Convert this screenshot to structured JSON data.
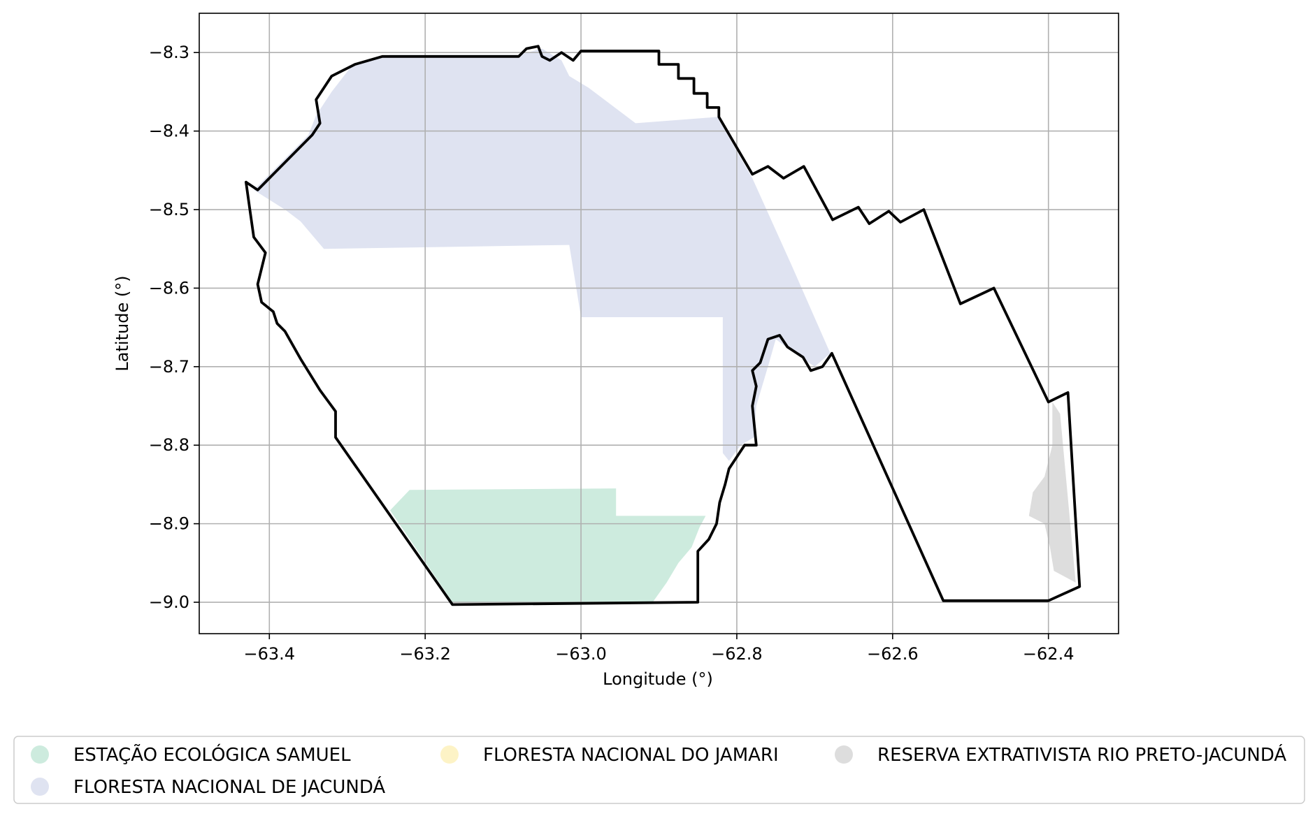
{
  "map": {
    "x_axis": {
      "label": "Longitude (°)",
      "range": [
        -63.49,
        -62.31
      ],
      "ticks": [
        {
          "value": -63.4,
          "label": "−63.4"
        },
        {
          "value": -63.2,
          "label": "−63.2"
        },
        {
          "value": -63.0,
          "label": "−63.0"
        },
        {
          "value": -62.8,
          "label": "−62.8"
        },
        {
          "value": -62.6,
          "label": "−62.6"
        },
        {
          "value": -62.4,
          "label": "−62.4"
        }
      ]
    },
    "y_axis": {
      "label": "Latitude (°)",
      "range": [
        -9.04,
        -8.25
      ],
      "ticks": [
        {
          "value": -8.3,
          "label": "−8.3"
        },
        {
          "value": -8.4,
          "label": "−8.4"
        },
        {
          "value": -8.5,
          "label": "−8.5"
        },
        {
          "value": -8.6,
          "label": "−8.6"
        },
        {
          "value": -8.7,
          "label": "−8.7"
        },
        {
          "value": -8.8,
          "label": "−8.8"
        },
        {
          "value": -8.9,
          "label": "−8.9"
        },
        {
          "value": -9.0,
          "label": "−9.0"
        }
      ]
    },
    "grid": true,
    "legend_position": "bottom",
    "boundary_color": "#000000",
    "areas": [
      {
        "name": "FLORESTA NACIONAL DE JACUNDÁ",
        "color": "#dfe3f1",
        "polygon": [
          [
            -63.42,
            -8.475
          ],
          [
            -63.385,
            -8.44
          ],
          [
            -63.35,
            -8.405
          ],
          [
            -63.34,
            -8.38
          ],
          [
            -63.32,
            -8.35
          ],
          [
            -63.295,
            -8.318
          ],
          [
            -63.245,
            -8.303
          ],
          [
            -63.08,
            -8.303
          ],
          [
            -63.05,
            -8.295
          ],
          [
            -63.025,
            -8.31
          ],
          [
            -63.015,
            -8.33
          ],
          [
            -62.99,
            -8.345
          ],
          [
            -62.97,
            -8.36
          ],
          [
            -62.95,
            -8.375
          ],
          [
            -62.93,
            -8.39
          ],
          [
            -62.825,
            -8.382
          ],
          [
            -62.78,
            -8.46
          ],
          [
            -62.73,
            -8.57
          ],
          [
            -62.68,
            -8.683
          ],
          [
            -62.7,
            -8.7
          ],
          [
            -62.73,
            -8.68
          ],
          [
            -62.75,
            -8.665
          ],
          [
            -62.76,
            -8.7
          ],
          [
            -62.775,
            -8.75
          ],
          [
            -62.778,
            -8.79
          ],
          [
            -62.795,
            -8.8
          ],
          [
            -62.81,
            -8.82
          ],
          [
            -62.818,
            -8.81
          ],
          [
            -62.818,
            -8.637
          ],
          [
            -63.0,
            -8.637
          ],
          [
            -63.015,
            -8.545
          ],
          [
            -63.33,
            -8.55
          ],
          [
            -63.36,
            -8.515
          ],
          [
            -63.38,
            -8.5
          ]
        ]
      },
      {
        "name": "ESTAÇÃO ECOLÓGICA SAMUEL",
        "color": "#cdebde",
        "polygon": [
          [
            -63.245,
            -8.883
          ],
          [
            -63.22,
            -8.857
          ],
          [
            -62.955,
            -8.855
          ],
          [
            -62.955,
            -8.89
          ],
          [
            -62.84,
            -8.89
          ],
          [
            -62.848,
            -8.905
          ],
          [
            -62.858,
            -8.93
          ],
          [
            -62.875,
            -8.95
          ],
          [
            -62.89,
            -8.975
          ],
          [
            -62.908,
            -9.0
          ],
          [
            -63.165,
            -9.0
          ]
        ]
      },
      {
        "name": "FLORESTA NACIONAL DO JAMARI",
        "color": "#fdf3c6",
        "polygon": []
      },
      {
        "name": "RESERVA EXTRATIVISTA RIO PRETO-JACUNDÁ",
        "color": "#dddddd",
        "polygon": [
          [
            -62.395,
            -8.745
          ],
          [
            -62.385,
            -8.76
          ],
          [
            -62.365,
            -8.975
          ],
          [
            -62.393,
            -8.96
          ],
          [
            -62.398,
            -8.93
          ],
          [
            -62.405,
            -8.9
          ],
          [
            -62.425,
            -8.89
          ],
          [
            -62.42,
            -8.86
          ],
          [
            -62.405,
            -8.84
          ],
          [
            -62.395,
            -8.8
          ]
        ]
      }
    ],
    "boundaries": [
      [
        [
          -63.43,
          -8.465
        ],
        [
          -63.415,
          -8.475
        ],
        [
          -63.37,
          -8.43
        ],
        [
          -63.345,
          -8.405
        ],
        [
          -63.335,
          -8.39
        ],
        [
          -63.34,
          -8.36
        ],
        [
          -63.32,
          -8.33
        ],
        [
          -63.29,
          -8.315
        ],
        [
          -63.255,
          -8.305
        ],
        [
          -63.08,
          -8.305
        ],
        [
          -63.07,
          -8.295
        ],
        [
          -63.055,
          -8.292
        ],
        [
          -63.05,
          -8.305
        ],
        [
          -63.04,
          -8.31
        ],
        [
          -63.025,
          -8.3
        ],
        [
          -63.01,
          -8.31
        ],
        [
          -63.0,
          -8.298
        ],
        [
          -62.9,
          -8.298
        ],
        [
          -62.9,
          -8.315
        ],
        [
          -62.875,
          -8.315
        ],
        [
          -62.875,
          -8.333
        ],
        [
          -62.855,
          -8.333
        ],
        [
          -62.855,
          -8.352
        ],
        [
          -62.838,
          -8.352
        ],
        [
          -62.838,
          -8.37
        ],
        [
          -62.823,
          -8.37
        ],
        [
          -62.823,
          -8.382
        ],
        [
          -62.78,
          -8.455
        ],
        [
          -62.76,
          -8.445
        ],
        [
          -62.74,
          -8.46
        ],
        [
          -62.714,
          -8.445
        ],
        [
          -62.677,
          -8.513
        ],
        [
          -62.644,
          -8.497
        ],
        [
          -62.63,
          -8.518
        ],
        [
          -62.605,
          -8.502
        ],
        [
          -62.59,
          -8.516
        ],
        [
          -62.56,
          -8.5
        ],
        [
          -62.513,
          -8.62
        ],
        [
          -62.47,
          -8.6
        ],
        [
          -62.4,
          -8.745
        ],
        [
          -62.375,
          -8.733
        ],
        [
          -62.36,
          -8.98
        ],
        [
          -62.4,
          -8.998
        ],
        [
          -62.535,
          -8.998
        ],
        [
          -62.678,
          -8.683
        ],
        [
          -62.69,
          -8.7
        ],
        [
          -62.705,
          -8.705
        ],
        [
          -62.715,
          -8.688
        ],
        [
          -62.735,
          -8.675
        ],
        [
          -62.745,
          -8.66
        ],
        [
          -62.76,
          -8.665
        ],
        [
          -62.77,
          -8.695
        ],
        [
          -62.78,
          -8.705
        ],
        [
          -62.775,
          -8.725
        ],
        [
          -62.78,
          -8.75
        ],
        [
          -62.775,
          -8.8
        ],
        [
          -62.79,
          -8.8
        ],
        [
          -62.81,
          -8.83
        ],
        [
          -62.815,
          -8.85
        ],
        [
          -62.822,
          -8.873
        ],
        [
          -62.826,
          -8.9
        ],
        [
          -62.836,
          -8.92
        ],
        [
          -62.85,
          -8.935
        ],
        [
          -62.85,
          -9.0
        ],
        [
          -63.165,
          -9.003
        ],
        [
          -63.315,
          -8.79
        ],
        [
          -63.315,
          -8.757
        ],
        [
          -63.335,
          -8.73
        ],
        [
          -63.36,
          -8.69
        ],
        [
          -63.38,
          -8.655
        ],
        [
          -63.39,
          -8.645
        ],
        [
          -63.395,
          -8.63
        ],
        [
          -63.41,
          -8.618
        ],
        [
          -63.415,
          -8.595
        ],
        [
          -63.405,
          -8.555
        ],
        [
          -63.42,
          -8.535
        ],
        [
          -63.425,
          -8.5
        ],
        [
          -63.43,
          -8.465
        ]
      ]
    ]
  }
}
